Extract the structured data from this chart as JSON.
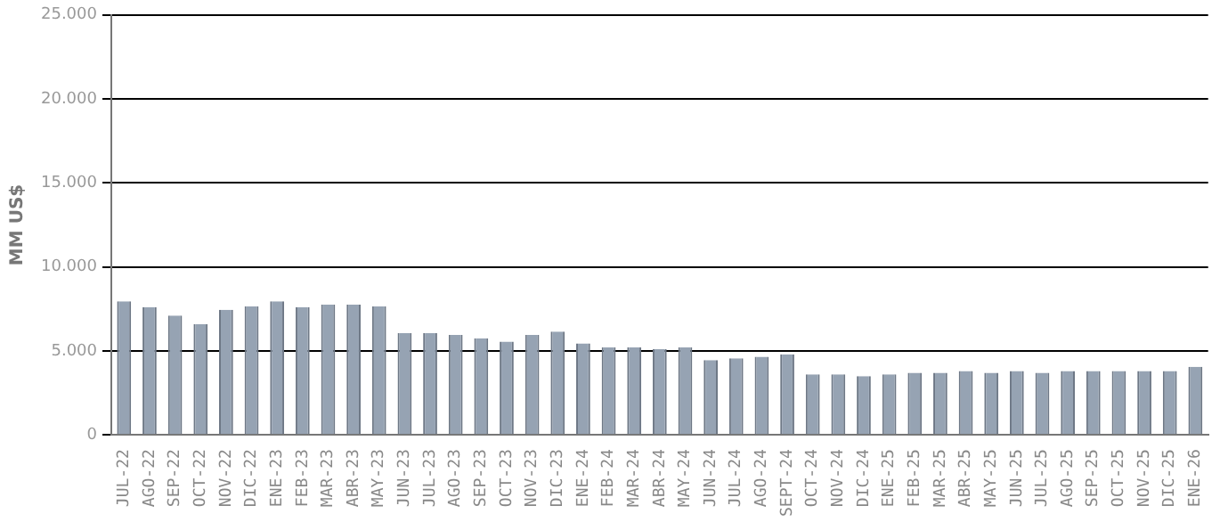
{
  "chart_data": {
    "type": "bar",
    "ylabel": "MM US$",
    "categories": [
      "JUL-22",
      "AGO-22",
      "SEP-22",
      "OCT-22",
      "NOV-22",
      "DIC-22",
      "ENE-23",
      "FEB-23",
      "MAR-23",
      "ABR-23",
      "MAY-23",
      "JUN-23",
      "JUL-23",
      "AGO-23",
      "SEP-23",
      "OCT-23",
      "NOV-23",
      "DIC-23",
      "ENE-24",
      "FEB-24",
      "MAR-24",
      "ABR-24",
      "MAY-24",
      "JUN-24",
      "JUL-24",
      "AGO-24",
      "SEPT-24",
      "OCT-24",
      "NOV-24",
      "DIC-24",
      "ENE-25",
      "FEB-25",
      "MAR-25",
      "ABR-25",
      "MAY-25",
      "JUN-25",
      "JUL-25",
      "AGO-25",
      "SEP-25",
      "OCT-25",
      "NOV-25",
      "DIC-25",
      "ENE-26"
    ],
    "values": [
      7950,
      7600,
      7100,
      6600,
      7450,
      7650,
      7950,
      7600,
      7750,
      7750,
      7650,
      6050,
      6050,
      5950,
      5750,
      5550,
      5950,
      6150,
      5450,
      5200,
      5200,
      5100,
      5200,
      4450,
      4550,
      4650,
      4800,
      3600,
      3600,
      3500,
      3600,
      3700,
      3700,
      3800,
      3700,
      3800,
      3700,
      3800,
      3800,
      3800,
      3800,
      3800,
      4050
    ],
    "color": "#96a3b3",
    "ylim": [
      0,
      25000
    ],
    "yticks": [
      {
        "value": 0,
        "label": "0"
      },
      {
        "value": 5000,
        "label": "5.000"
      },
      {
        "value": 10000,
        "label": "10.000"
      },
      {
        "value": 15000,
        "label": "15.000"
      },
      {
        "value": 20000,
        "label": "20.000"
      },
      {
        "value": 25000,
        "label": "25.000"
      }
    ],
    "grid": "y",
    "legend": false
  }
}
